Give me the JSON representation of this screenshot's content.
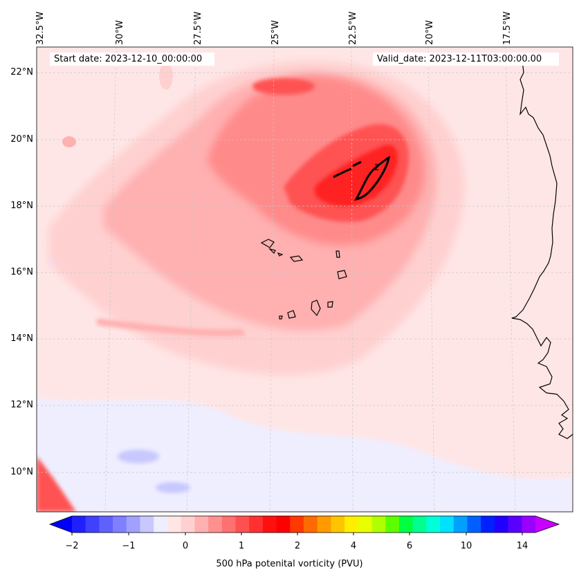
{
  "map": {
    "start_label": "Start date: 2023-12-10_00:00:00",
    "valid_label": "Valid_date: 2023-12-11T03:00:00.00",
    "contour_label": "2",
    "lon_labels": [
      "32.5°W",
      "30°W",
      "27.5°W",
      "25°W",
      "22.5°W",
      "20°W",
      "17.5°W"
    ],
    "lat_labels": [
      "22°N",
      "20°N",
      "18°N",
      "16°N",
      "14°N",
      "12°N",
      "10°N"
    ],
    "extent": {
      "lon_min": -32.6,
      "lon_max": -15.2,
      "lat_min": 8.9,
      "lat_max": 22.8
    },
    "field_colors": {
      "pale": "#ffe6e6",
      "light": "#ffd0d0",
      "mid": "#ffb0b0",
      "strong": "#ff8a8a",
      "deep": "#ff5252",
      "core": "#ff2020",
      "neg_pale": "#eeeeff",
      "neg": "#c8c8ff",
      "neg_deep": "#8080ff",
      "coast": "#000000",
      "grid": "#c8c8c8"
    }
  },
  "colorbar": {
    "label": "500 hPa potenital vorticity (PVU)",
    "tick_labels": [
      "−2",
      "−1",
      "0",
      "1",
      "2",
      "4",
      "6",
      "10",
      "14"
    ],
    "colors": [
      "#0000ff",
      "#2020ff",
      "#4040ff",
      "#6060ff",
      "#8080ff",
      "#a0a0ff",
      "#c8c8ff",
      "#eeeeff",
      "#ffe6e6",
      "#ffd0d0",
      "#ffb0b0",
      "#ff9090",
      "#ff7070",
      "#ff5050",
      "#ff3030",
      "#ff1010",
      "#ff0000",
      "#ff3800",
      "#ff6a00",
      "#ff9a00",
      "#ffc400",
      "#ffee00",
      "#e8ff00",
      "#b0ff00",
      "#5cff00",
      "#00ff40",
      "#00ff90",
      "#00ffd8",
      "#00e0ff",
      "#00a0ff",
      "#0060ff",
      "#0020ff",
      "#2000ff",
      "#5a00ff",
      "#9a00ff",
      "#c800ff"
    ]
  }
}
